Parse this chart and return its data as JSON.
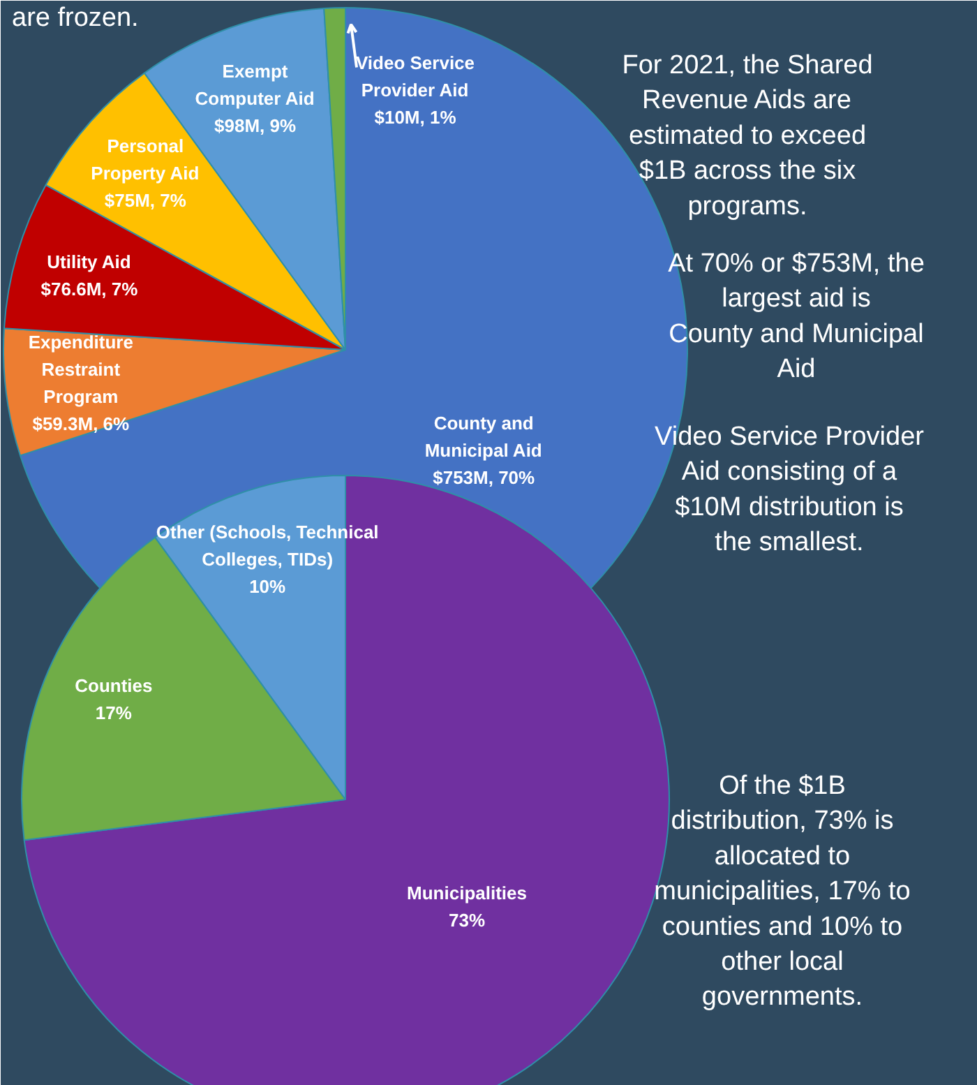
{
  "chart_data": [
    {
      "type": "pie",
      "categories": [
        "County and Municipal Aid",
        "Expenditure Restraint Program",
        "Utility Aid",
        "Personal Property Aid",
        "Exempt Computer Aid",
        "Video Service Provider Aid"
      ],
      "values": [
        70,
        6,
        7,
        7,
        9,
        1
      ],
      "value_labels": [
        "$753M, 70%",
        "$59.3M, 6%",
        "$76.6M, 7%",
        "$75M, 7%",
        "$98M, 9%",
        "$10M, 1%"
      ],
      "colors": [
        "#4472c4",
        "#ed7d31",
        "#c00000",
        "#ffc000",
        "#5b9bd5",
        "#70ad47"
      ],
      "legend": false,
      "annotations": [
        "are frozen.",
        "For 2021, the Shared Revenue Aids are estimated to exceed $1B across the six programs.",
        "At 70% or $753M, the largest aid is County and Municipal Aid",
        "Video Service Provider Aid consisting of a $10M distribution is the smallest."
      ]
    },
    {
      "type": "pie",
      "categories": [
        "Municipalities",
        "Counties",
        "Other (Schools, Technical Colleges, TIDs)"
      ],
      "values": [
        73,
        17,
        10
      ],
      "value_labels": [
        "73%",
        "17%",
        "10%"
      ],
      "colors": [
        "#7030a0",
        "#70ad47",
        "#5b9bd5"
      ],
      "legend": false,
      "annotations": [
        "Of the $1B distribution, 73% is allocated to municipalities, 17% to counties and 10% to other local governments."
      ]
    }
  ]
}
